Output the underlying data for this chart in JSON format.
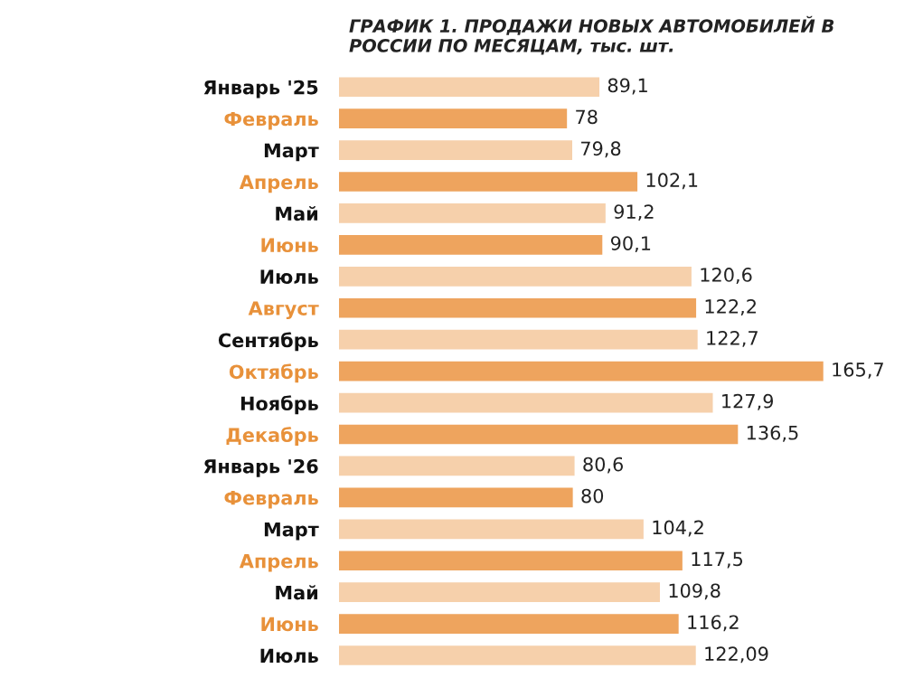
{
  "chart_data": {
    "type": "bar",
    "orientation": "horizontal",
    "title": "ГРАФИК 1. ПРОДАЖИ НОВЫХ АВТОМОБИЛЕЙ В РОССИИ ПО МЕСЯЦАМ, тыс. шт.",
    "categories": [
      "Январь '25",
      "Февраль",
      "Март",
      "Апрель",
      "Май",
      "Июнь",
      "Июль",
      "Август",
      "Сентябрь",
      "Октябрь",
      "Ноябрь",
      "Декабрь",
      "Январь '26",
      "Февраль",
      "Март",
      "Апрель",
      "Май",
      "Июнь",
      "Июль"
    ],
    "values": [
      89.1,
      78,
      79.8,
      102.1,
      91.2,
      90.1,
      120.6,
      122.2,
      122.7,
      165.7,
      127.9,
      136.5,
      80.6,
      80,
      104.2,
      117.5,
      109.8,
      116.2,
      122.09
    ],
    "value_labels": [
      "89,1",
      "78",
      "79,8",
      "102,1",
      "91,2",
      "90,1",
      "120,6",
      "122,2",
      "122,7",
      "165,7",
      "127,9",
      "136,5",
      "80,6",
      "80",
      "104,2",
      "117,5",
      "109,8",
      "116,2",
      "122,09"
    ],
    "colors": [
      "#f6d0ab",
      "#eea45e",
      "#f6d0ab",
      "#eea45e",
      "#f6d0ab",
      "#eea45e",
      "#f6d0ab",
      "#eea45e",
      "#f6d0ab",
      "#eea45e",
      "#f6d0ab",
      "#eea45e",
      "#f6d0ab",
      "#eea45e",
      "#f6d0ab",
      "#eea45e",
      "#f6d0ab",
      "#eea45e",
      "#f6d0ab"
    ],
    "data_labels": false,
    "grid": false,
    "legend": false
  }
}
